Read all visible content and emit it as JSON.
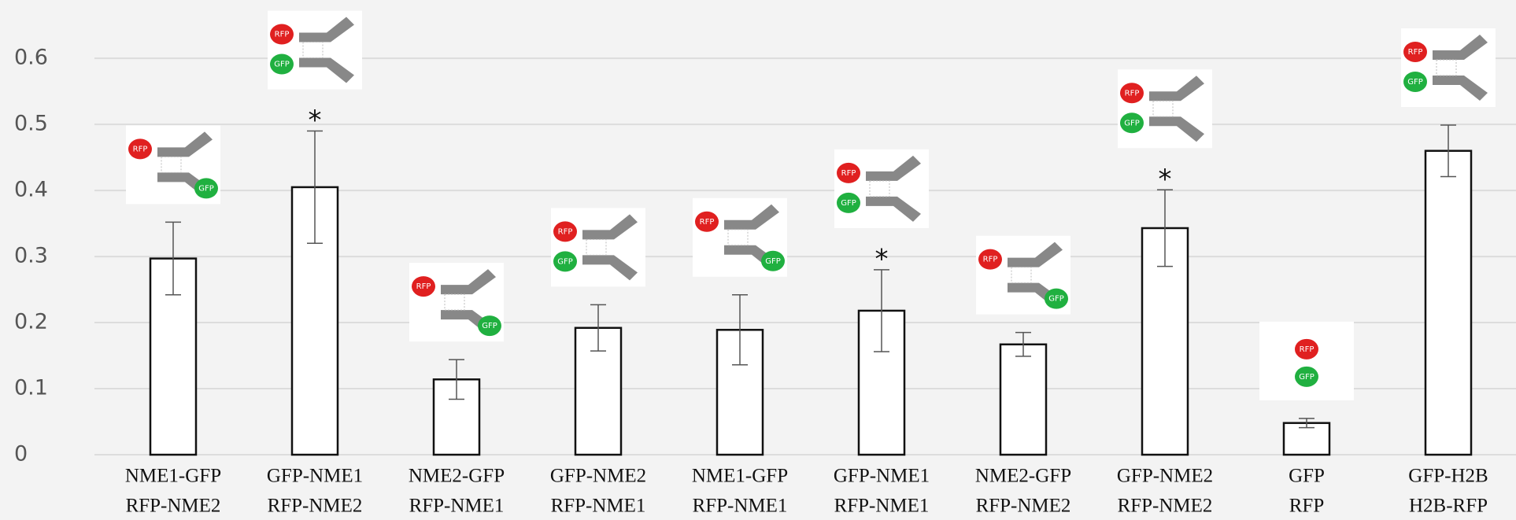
{
  "chart_data": {
    "type": "bar",
    "categories": [
      [
        "NME1-GFP",
        "RFP-NME2"
      ],
      [
        "GFP-NME1",
        "RFP-NME2"
      ],
      [
        "NME2-GFP",
        "RFP-NME1"
      ],
      [
        "GFP-NME2",
        "RFP-NME1"
      ],
      [
        "NME1-GFP",
        "RFP-NME1"
      ],
      [
        "GFP-NME1",
        "RFP-NME1"
      ],
      [
        "NME2-GFP",
        "RFP-NME2"
      ],
      [
        "GFP-NME2",
        "RFP-NME2"
      ],
      [
        "GFP",
        "RFP"
      ],
      [
        "GFP-H2B",
        "H2B-RFP"
      ]
    ],
    "values": [
      0.297,
      0.405,
      0.114,
      0.192,
      0.189,
      0.218,
      0.167,
      0.343,
      0.048,
      0.46
    ],
    "errors": [
      0.055,
      0.085,
      0.03,
      0.035,
      0.053,
      0.062,
      0.018,
      0.058,
      0.007,
      0.039
    ],
    "significance": [
      null,
      "*",
      null,
      null,
      null,
      "*",
      null,
      "*",
      null,
      null
    ],
    "icon_labels": [
      "RFP",
      "GFP"
    ],
    "color": "#ffffff",
    "ylim": [
      0,
      0.68
    ],
    "yticks": [
      0,
      0.1,
      0.2,
      0.3,
      0.4,
      0.5,
      0.6
    ],
    "grid": true
  }
}
